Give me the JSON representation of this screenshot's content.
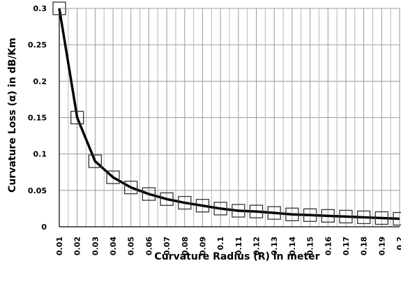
{
  "chart_data": {
    "type": "line",
    "title": "",
    "xlabel": "Curvature Radius (R) in meter",
    "ylabel": "Curvature Loss (α) in dB/Km",
    "x_tick_labels": [
      "0.01",
      "0.02",
      "0.03",
      "0.04",
      "0.05",
      "0.06",
      "0.07",
      "0.08",
      "0.09",
      "0.1",
      "0.11",
      "0.12",
      "0.13",
      "0.14",
      "0.15",
      "0.16",
      "0.17",
      "0.18",
      "0.19",
      "0.2"
    ],
    "y_tick_labels": [
      "0",
      "0.05",
      "0.1",
      "0.15",
      "0.2",
      "0.25",
      "0.3"
    ],
    "ylim": [
      0,
      0.3
    ],
    "grid": true,
    "legend": "none",
    "series": [
      {
        "marker": "square",
        "color": "#000000",
        "x": [
          0.01,
          0.02,
          0.03,
          0.04,
          0.05,
          0.06,
          0.07,
          0.08,
          0.09,
          0.1,
          0.11,
          0.12,
          0.13,
          0.14,
          0.15,
          0.16,
          0.17,
          0.18,
          0.19,
          0.2
        ],
        "y": [
          0.3,
          0.15,
          0.09,
          0.068,
          0.054,
          0.045,
          0.038,
          0.033,
          0.029,
          0.025,
          0.022,
          0.021,
          0.019,
          0.017,
          0.016,
          0.015,
          0.014,
          0.013,
          0.012,
          0.011
        ]
      }
    ]
  }
}
